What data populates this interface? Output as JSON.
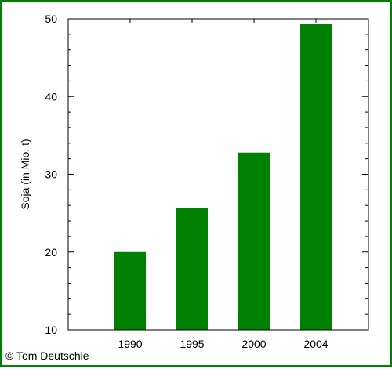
{
  "chart_data": {
    "type": "bar",
    "categories": [
      "1990",
      "1995",
      "2000",
      "2004"
    ],
    "values": [
      20.0,
      25.7,
      32.8,
      49.3
    ],
    "title": "",
    "xlabel": "",
    "ylabel": "Soja (in Mio. t)",
    "ylim": [
      10,
      50
    ],
    "yticks": [
      "10",
      "20",
      "30",
      "40",
      "50"
    ],
    "grid": false,
    "bar_color": "#008000",
    "frame_color": "#008000"
  },
  "credit": "© Tom Deutschle"
}
